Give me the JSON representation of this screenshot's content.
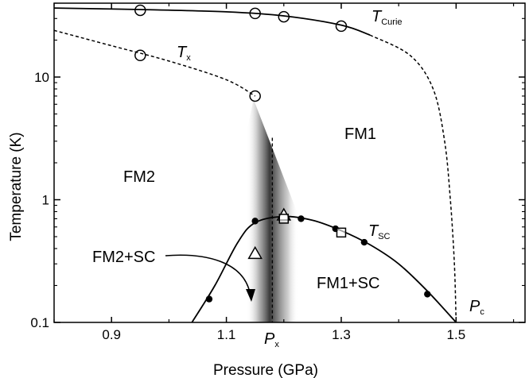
{
  "chart_data": {
    "type": "scatter",
    "title": "",
    "xlabel": "Pressure (GPa)",
    "ylabel": "Temperature (K)",
    "xlim": [
      0.8,
      1.62
    ],
    "ylim": [
      0.1,
      40
    ],
    "yscale": "log",
    "grid": false,
    "x_ticks": [
      0.9,
      1.1,
      1.3,
      1.5
    ],
    "x_tick_labels": [
      "0.9",
      "1.1",
      "1.3",
      "1.5"
    ],
    "y_ticks": [
      0.1,
      1,
      10
    ],
    "y_tick_labels": [
      "0.1",
      "1",
      "10"
    ],
    "series": [
      {
        "name": "T_Curie",
        "marker": "open-circle",
        "points": [
          [
            0.95,
            35
          ],
          [
            1.15,
            33
          ],
          [
            1.2,
            31
          ],
          [
            1.3,
            26
          ]
        ],
        "fit": [
          [
            0.8,
            36.5
          ],
          [
            0.95,
            35.5
          ],
          [
            1.1,
            34
          ],
          [
            1.2,
            31.5
          ],
          [
            1.3,
            26.5
          ],
          [
            1.35,
            22
          ]
        ],
        "fit_dashed": [
          [
            1.35,
            22
          ],
          [
            1.42,
            15
          ],
          [
            1.46,
            8
          ],
          [
            1.48,
            3
          ],
          [
            1.49,
            1
          ],
          [
            1.497,
            0.3
          ],
          [
            1.5,
            0.1
          ]
        ]
      },
      {
        "name": "T_x",
        "marker": "open-circle",
        "points": [
          [
            0.95,
            15
          ],
          [
            1.15,
            7
          ]
        ],
        "fit": [
          [
            0.8,
            24
          ],
          [
            0.9,
            18
          ],
          [
            1.0,
            13.5
          ],
          [
            1.1,
            9.5
          ],
          [
            1.15,
            7
          ]
        ]
      },
      {
        "name": "T_SC (filled circles)",
        "marker": "filled-circle",
        "points": [
          [
            1.07,
            0.155
          ],
          [
            1.15,
            0.67
          ],
          [
            1.23,
            0.7
          ],
          [
            1.29,
            0.58
          ],
          [
            1.34,
            0.45
          ],
          [
            1.45,
            0.17
          ]
        ],
        "fit": [
          [
            1.04,
            0.1
          ],
          [
            1.08,
            0.2
          ],
          [
            1.12,
            0.45
          ],
          [
            1.15,
            0.65
          ],
          [
            1.2,
            0.73
          ],
          [
            1.25,
            0.68
          ],
          [
            1.3,
            0.56
          ],
          [
            1.35,
            0.43
          ],
          [
            1.4,
            0.3
          ],
          [
            1.45,
            0.18
          ],
          [
            1.5,
            0.1
          ]
        ]
      },
      {
        "name": "T_SC (open triangles)",
        "marker": "open-triangle",
        "points": [
          [
            1.15,
            0.36
          ],
          [
            1.2,
            0.74
          ]
        ]
      },
      {
        "name": "T_SC (open squares)",
        "marker": "open-square",
        "points": [
          [
            1.2,
            0.7
          ],
          [
            1.3,
            0.54
          ]
        ]
      }
    ],
    "px": 1.18,
    "pc": 1.5,
    "shading_center": 1.18,
    "annotations": {
      "tcurie_label": "T",
      "tcurie_sub": "Curie",
      "tx_label": "T",
      "tx_sub": "x",
      "tsc_label": "T",
      "tsc_sub": "SC",
      "px_label": "P",
      "px_sub": "x",
      "pc_label": "P",
      "pc_sub": "c",
      "fm1": "FM1",
      "fm2": "FM2",
      "fm1sc": "FM1+SC",
      "fm2sc": "FM2+SC"
    }
  }
}
